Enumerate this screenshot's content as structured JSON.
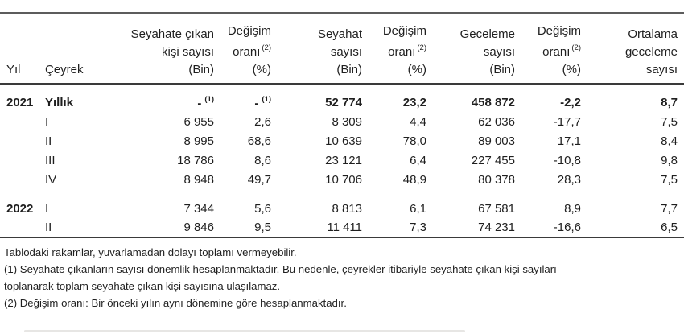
{
  "colors": {
    "text": "#1f1f1f",
    "rule": "#3a3a3a"
  },
  "table": {
    "header": {
      "year": "Yıl",
      "quarter": "Çeyrek",
      "value_columns": [
        {
          "lines": [
            "Seyahate çıkan",
            "kişi sayısı",
            "(Bin)"
          ]
        },
        {
          "lines": [
            "Değişim",
            "oranı",
            "(%)"
          ],
          "sup": "(2)"
        },
        {
          "lines": [
            "Seyahat",
            "sayısı",
            "(Bin)"
          ]
        },
        {
          "lines": [
            "Değişim",
            "oranı",
            "(%)"
          ],
          "sup": "(2)"
        },
        {
          "lines": [
            "Geceleme",
            "sayısı",
            "(Bin)"
          ]
        },
        {
          "lines": [
            "Değişim",
            "oranı",
            "(%)"
          ],
          "sup": "(2)"
        },
        {
          "lines": [
            "Ortalama",
            "geceleme",
            "sayısı"
          ]
        }
      ]
    },
    "rows": [
      {
        "year": "2021",
        "quarter": "Yıllık",
        "bold": true,
        "cells": [
          {
            "v": "-",
            "sup": "(1)"
          },
          {
            "v": "-",
            "sup": "(1)"
          },
          {
            "v": "52 774"
          },
          {
            "v": "23,2"
          },
          {
            "v": "458 872"
          },
          {
            "v": "-2,2"
          },
          {
            "v": "8,7"
          }
        ]
      },
      {
        "year": "",
        "quarter": "I",
        "bold": false,
        "cells": [
          {
            "v": "6 955"
          },
          {
            "v": "2,6"
          },
          {
            "v": "8 309"
          },
          {
            "v": "4,4"
          },
          {
            "v": "62 036"
          },
          {
            "v": "-17,7"
          },
          {
            "v": "7,5"
          }
        ]
      },
      {
        "year": "",
        "quarter": "II",
        "bold": false,
        "cells": [
          {
            "v": "8 995"
          },
          {
            "v": "68,6"
          },
          {
            "v": "10 639"
          },
          {
            "v": "78,0"
          },
          {
            "v": "89 003"
          },
          {
            "v": "17,1"
          },
          {
            "v": "8,4"
          }
        ]
      },
      {
        "year": "",
        "quarter": "III",
        "bold": false,
        "cells": [
          {
            "v": "18 786"
          },
          {
            "v": "8,6"
          },
          {
            "v": "23 121"
          },
          {
            "v": "6,4"
          },
          {
            "v": "227 455"
          },
          {
            "v": "-10,8"
          },
          {
            "v": "9,8"
          }
        ]
      },
      {
        "year": "",
        "quarter": "IV",
        "bold": false,
        "cells": [
          {
            "v": "8 948"
          },
          {
            "v": "49,7"
          },
          {
            "v": "10 706"
          },
          {
            "v": "48,9"
          },
          {
            "v": "80 378"
          },
          {
            "v": "28,3"
          },
          {
            "v": "7,5"
          }
        ]
      },
      {
        "year": "2022",
        "quarter": "I",
        "bold": false,
        "gap_before": true,
        "cells": [
          {
            "v": "7 344"
          },
          {
            "v": "5,6"
          },
          {
            "v": "8 813"
          },
          {
            "v": "6,1"
          },
          {
            "v": "67 581"
          },
          {
            "v": "8,9"
          },
          {
            "v": "7,7"
          }
        ]
      },
      {
        "year": "",
        "quarter": "II",
        "bold": false,
        "cells": [
          {
            "v": "9 846"
          },
          {
            "v": "9,5"
          },
          {
            "v": "11 411"
          },
          {
            "v": "7,3"
          },
          {
            "v": "74 231"
          },
          {
            "v": "-16,6"
          },
          {
            "v": "6,5"
          }
        ]
      }
    ]
  },
  "notes": {
    "lines": [
      "Tablodaki rakamlar, yuvarlamadan dolayı toplamı vermeyebilir.",
      "(1) Seyahate çıkanların sayısı dönemlik hesaplanmaktadır. Bu nedenle, çeyrekler itibariyle seyahate çıkan kişi sayıları",
      "toplanarak toplam seyahate çıkan kişi sayısına ulaşılamaz.",
      "(2) Değişim oranı: Bir önceki yılın aynı dönemine göre hesaplanmaktadır."
    ]
  }
}
